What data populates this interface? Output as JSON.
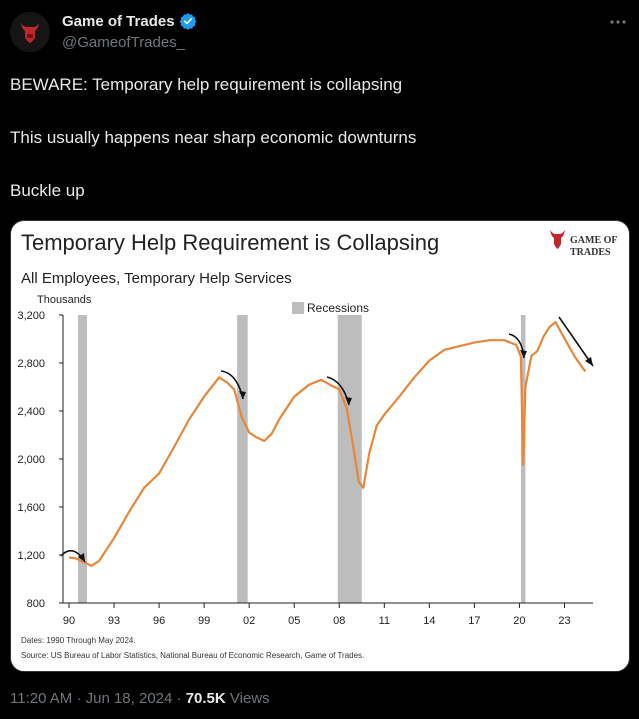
{
  "tweet": {
    "author_name": "Game of Trades",
    "handle": "@GameofTrades_",
    "more_icon": "ellipsis-icon",
    "lines": [
      "BEWARE: Temporary help requirement is collapsing",
      "This usually happens near sharp economic downturns",
      "Buckle up"
    ],
    "time": "11:20 AM",
    "date": "Jun 18, 2024",
    "separator": "·",
    "views": "70.5K",
    "views_label": "Views",
    "verified_color": "#1d9bf0"
  },
  "chart_data": {
    "type": "line",
    "title": "Temporary Help Requirement is Collapsing",
    "subtitle": "All Employees, Temporary Help Services",
    "ylabel": "Thousands",
    "legend": "Recessions",
    "logo_text": "GAME OF TRADES",
    "footnote_dates": "Dates: 1990 Through May 2024.",
    "footnote_source": "Source: US Bureau of Labor Statistics, National Bureau of Economic Research, Game of Trades.",
    "line_color": "#e8863a",
    "recession_color": "#bdbdbd",
    "ylim": [
      800,
      3200
    ],
    "xlim": [
      1989.6,
      2024.9
    ],
    "y_ticks": [
      800,
      1200,
      1600,
      2000,
      2400,
      2800,
      3200
    ],
    "y_tick_labels": [
      "800",
      "1,200",
      "1,600",
      "2,000",
      "2,400",
      "2,800",
      "3,200"
    ],
    "x_ticks": [
      1990,
      1993,
      1996,
      1999,
      2002,
      2005,
      2008,
      2011,
      2014,
      2017,
      2020,
      2023
    ],
    "x_tick_labels": [
      "90",
      "93",
      "96",
      "99",
      "02",
      "05",
      "08",
      "11",
      "14",
      "17",
      "20",
      "23"
    ],
    "recessions": [
      [
        1990.6,
        1991.2
      ],
      [
        2001.2,
        2001.9
      ],
      [
        2007.9,
        2009.5
      ],
      [
        2020.1,
        2020.4
      ]
    ],
    "series": [
      {
        "x": [
          1990.0,
          1990.5,
          1991.0,
          1991.5,
          1992.0,
          1993.0,
          1994.0,
          1995.0,
          1996.0,
          1997.0,
          1998.0,
          1999.0,
          2000.0,
          2000.5,
          2001.0,
          2001.5,
          2002.0,
          2002.5,
          2003.0,
          2003.5,
          2004.0,
          2005.0,
          2006.0,
          2006.8,
          2007.5,
          2008.0,
          2008.5,
          2009.0,
          2009.3,
          2009.6,
          2010.0,
          2010.5,
          2011.0,
          2012.0,
          2013.0,
          2014.0,
          2015.0,
          2016.0,
          2017.0,
          2018.0,
          2019.0,
          2019.8,
          2020.1,
          2020.25,
          2020.4,
          2020.8,
          2021.2,
          2021.6,
          2022.0,
          2022.4,
          2022.8,
          2023.2,
          2023.7,
          2024.2,
          2024.4
        ],
        "y": [
          1180,
          1170,
          1140,
          1110,
          1150,
          1340,
          1560,
          1760,
          1880,
          2100,
          2330,
          2520,
          2680,
          2640,
          2580,
          2350,
          2220,
          2180,
          2150,
          2210,
          2330,
          2520,
          2620,
          2660,
          2610,
          2580,
          2420,
          2050,
          1810,
          1760,
          2050,
          2280,
          2370,
          2520,
          2680,
          2820,
          2910,
          2940,
          2970,
          2990,
          2990,
          2950,
          2850,
          1950,
          2600,
          2860,
          2900,
          3020,
          3100,
          3140,
          3050,
          2960,
          2850,
          2760,
          2730
        ]
      }
    ]
  }
}
